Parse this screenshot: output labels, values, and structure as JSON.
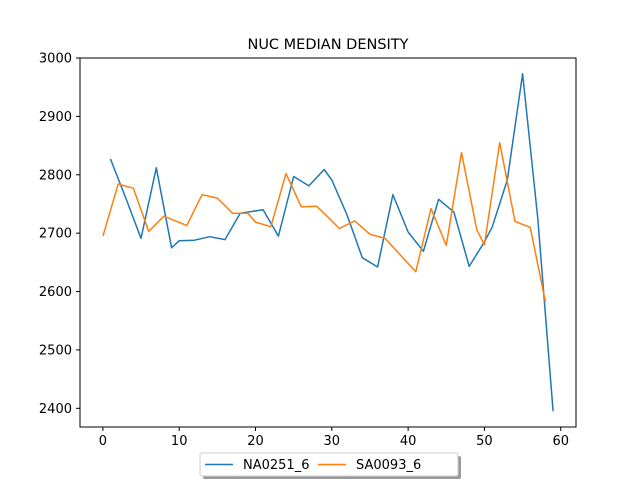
{
  "chart_data": {
    "type": "line",
    "title": "NUC MEDIAN DENSITY",
    "xlabel": "",
    "ylabel": "",
    "xlim": [
      -3,
      62
    ],
    "ylim": [
      2368,
      3000
    ],
    "xticks": [
      0,
      10,
      20,
      30,
      40,
      50,
      60
    ],
    "yticks": [
      2400,
      2500,
      2600,
      2700,
      2800,
      2900,
      3000
    ],
    "grid": false,
    "legend_position": "bottom-center",
    "series": [
      {
        "name": "NA0251_6",
        "color": "#1f77b4",
        "points": [
          [
            1,
            2827
          ],
          [
            3,
            2760
          ],
          [
            5,
            2691
          ],
          [
            7,
            2812
          ],
          [
            9,
            2675
          ],
          [
            10,
            2687
          ],
          [
            12,
            2688
          ],
          [
            14,
            2694
          ],
          [
            16,
            2689
          ],
          [
            18,
            2734
          ],
          [
            21,
            2740
          ],
          [
            23,
            2695
          ],
          [
            25,
            2797
          ],
          [
            27,
            2781
          ],
          [
            29,
            2809
          ],
          [
            30,
            2791
          ],
          [
            32,
            2731
          ],
          [
            34,
            2658
          ],
          [
            36,
            2642
          ],
          [
            38,
            2766
          ],
          [
            40,
            2702
          ],
          [
            42,
            2669
          ],
          [
            44,
            2758
          ],
          [
            46,
            2736
          ],
          [
            48,
            2643
          ],
          [
            50,
            2685
          ],
          [
            51,
            2710
          ],
          [
            53,
            2791
          ],
          [
            55,
            2973
          ],
          [
            57,
            2725
          ],
          [
            59,
            2395
          ]
        ]
      },
      {
        "name": "SA0093_6",
        "color": "#ff7f0e",
        "points": [
          [
            0,
            2695
          ],
          [
            2,
            2784
          ],
          [
            4,
            2777
          ],
          [
            6,
            2703
          ],
          [
            8,
            2729
          ],
          [
            11,
            2713
          ],
          [
            13,
            2766
          ],
          [
            15,
            2760
          ],
          [
            17,
            2734
          ],
          [
            19,
            2734
          ],
          [
            20,
            2719
          ],
          [
            22,
            2711
          ],
          [
            24,
            2802
          ],
          [
            26,
            2745
          ],
          [
            28,
            2746
          ],
          [
            29,
            2734
          ],
          [
            31,
            2708
          ],
          [
            33,
            2721
          ],
          [
            35,
            2698
          ],
          [
            37,
            2691
          ],
          [
            39,
            2662
          ],
          [
            41,
            2634
          ],
          [
            43,
            2742
          ],
          [
            45,
            2679
          ],
          [
            47,
            2838
          ],
          [
            49,
            2706
          ],
          [
            50,
            2680
          ],
          [
            52,
            2855
          ],
          [
            54,
            2720
          ],
          [
            56,
            2710
          ],
          [
            58,
            2582
          ]
        ]
      }
    ]
  }
}
